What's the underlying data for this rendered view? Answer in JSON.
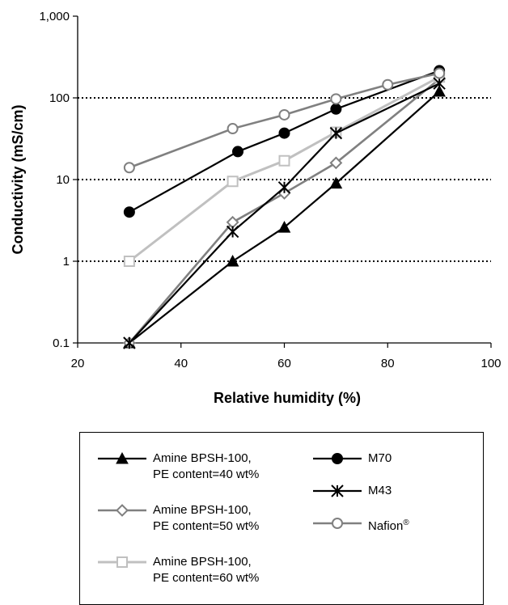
{
  "chart_data": {
    "type": "line",
    "xlabel": "Relative humidity (%)",
    "ylabel": "Conductivity (mS/cm)",
    "xlim": [
      20,
      100
    ],
    "ylim": [
      0.1,
      1000
    ],
    "y_scale": "log",
    "x_ticks": [
      "20",
      "40",
      "60",
      "80",
      "100"
    ],
    "y_ticks": [
      "0.1",
      "1",
      "10",
      "100",
      "1,000"
    ],
    "grid": "horizontal dotted at 1, 10, 100",
    "legend_position": "bottom",
    "series": [
      {
        "name": "Amine BPSH-100, PE content=40 wt%",
        "line1": "Amine BPSH-100,",
        "line2": "PE content=40 wt%",
        "marker": "triangle-filled",
        "color": "#000000",
        "x": [
          30,
          50,
          60,
          70,
          90
        ],
        "y": [
          0.1,
          1.0,
          2.6,
          9.0,
          120
        ]
      },
      {
        "name": "Amine BPSH-100, PE content=50 wt%",
        "line1": "Amine BPSH-100,",
        "line2": "PE content=50 wt%",
        "marker": "diamond-open",
        "color": "#808080",
        "x": [
          30,
          50,
          60,
          70,
          90
        ],
        "y": [
          0.1,
          3.0,
          6.8,
          16,
          170
        ]
      },
      {
        "name": "Amine BPSH-100, PE content=60 wt%",
        "line1": "Amine BPSH-100,",
        "line2": "PE content=60 wt%",
        "marker": "square-open",
        "color": "#c0c0c0",
        "x": [
          30,
          50,
          60,
          70,
          90
        ],
        "y": [
          1.0,
          9.5,
          17,
          38,
          180
        ]
      },
      {
        "name": "M70",
        "line1": "M70",
        "line2": "",
        "marker": "circle-filled",
        "color": "#000000",
        "x": [
          30,
          51,
          60,
          70,
          90
        ],
        "y": [
          4.0,
          22,
          37,
          73,
          215
        ]
      },
      {
        "name": "M43",
        "line1": "M43",
        "line2": "",
        "marker": "asterisk",
        "color": "#000000",
        "x": [
          30,
          50,
          60,
          70,
          90
        ],
        "y": [
          0.1,
          2.3,
          8.0,
          37,
          150
        ]
      },
      {
        "name": "Nafion®",
        "line1": "Nafion",
        "line2": "",
        "marker": "circle-open",
        "color": "#808080",
        "x": [
          30,
          50,
          60,
          70,
          80,
          90
        ],
        "y": [
          14,
          42,
          62,
          97,
          145,
          200
        ]
      }
    ]
  },
  "legend": {
    "nafion_sup": "®"
  }
}
